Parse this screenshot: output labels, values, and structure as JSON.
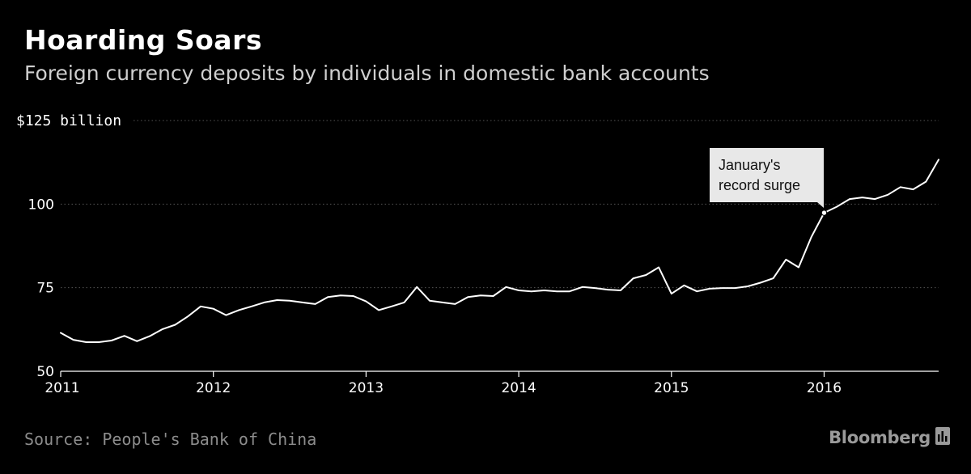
{
  "header": {
    "title": "Hoarding Soars",
    "subtitle": "Foreign currency deposits by individuals in domestic bank accounts"
  },
  "footer": {
    "source": "Source: People's Bank of China",
    "brand": "Bloomberg",
    "brand_icon": "bloomberg-chart-icon"
  },
  "colors": {
    "background": "#000000",
    "line": "#ffffff",
    "grid": "#555555",
    "callout_bg": "#e8e8e8"
  },
  "chart_data": {
    "type": "line",
    "title": "Hoarding Soars",
    "subtitle": "Foreign currency deposits by individuals in domestic bank accounts",
    "ylabel": "",
    "xlabel": "",
    "ylim": [
      50,
      125
    ],
    "xlim": [
      2011.0,
      2016.75
    ],
    "y_ticks": [
      {
        "value": 125,
        "label": "$125 billion"
      },
      {
        "value": 100,
        "label": "100"
      },
      {
        "value": 75,
        "label": "75"
      },
      {
        "value": 50,
        "label": "50"
      }
    ],
    "x_ticks": [
      {
        "value": 2011,
        "label": "2011"
      },
      {
        "value": 2012,
        "label": "2012"
      },
      {
        "value": 2013,
        "label": "2013"
      },
      {
        "value": 2014,
        "label": "2014"
      },
      {
        "value": 2015,
        "label": "2015"
      },
      {
        "value": 2016,
        "label": "2016"
      }
    ],
    "grid": "horizontal-dotted",
    "series": [
      {
        "x": [
          2011.0,
          2011.083,
          2011.167,
          2011.25,
          2011.333,
          2011.417,
          2011.5,
          2011.583,
          2011.667,
          2011.75,
          2011.833,
          2011.917,
          2012.0,
          2012.083,
          2012.167,
          2012.25,
          2012.333,
          2012.417,
          2012.5,
          2012.583,
          2012.667,
          2012.75,
          2012.833,
          2012.917,
          2013.0,
          2013.083,
          2013.167,
          2013.25,
          2013.333,
          2013.417,
          2013.5,
          2013.583,
          2013.667,
          2013.75,
          2013.833,
          2013.917,
          2014.0,
          2014.083,
          2014.167,
          2014.25,
          2014.333,
          2014.417,
          2014.5,
          2014.583,
          2014.667,
          2014.75,
          2014.833,
          2014.917,
          2015.0,
          2015.083,
          2015.167,
          2015.25,
          2015.333,
          2015.417,
          2015.5,
          2015.583,
          2015.667,
          2015.75,
          2015.833,
          2015.917,
          2016.0,
          2016.083,
          2016.167,
          2016.25,
          2016.333,
          2016.417,
          2016.5,
          2016.583,
          2016.667,
          2016.75
        ],
        "values": [
          61.5,
          59.4,
          58.7,
          58.7,
          59.2,
          60.6,
          59.0,
          60.5,
          62.6,
          63.9,
          66.4,
          69.4,
          68.7,
          66.8,
          68.3,
          69.4,
          70.6,
          71.3,
          71.1,
          70.6,
          70.1,
          72.2,
          72.7,
          72.5,
          70.9,
          68.3,
          69.4,
          70.6,
          75.2,
          71.1,
          70.6,
          70.1,
          72.2,
          72.7,
          72.5,
          75.2,
          74.2,
          73.9,
          74.2,
          73.9,
          73.9,
          75.2,
          74.9,
          74.4,
          74.2,
          77.8,
          78.8,
          81.1,
          73.2,
          75.7,
          73.9,
          74.7,
          74.9,
          74.9,
          75.4,
          76.5,
          77.8,
          83.4,
          81.1,
          90.2,
          97.4,
          99.2,
          101.5,
          102.0,
          101.5,
          102.8,
          105.1,
          104.4,
          106.7,
          113.3
        ]
      }
    ],
    "annotations": [
      {
        "label_line1": "January's",
        "label_line2": "record surge",
        "x": 2016.0,
        "y": 97.4
      }
    ]
  }
}
